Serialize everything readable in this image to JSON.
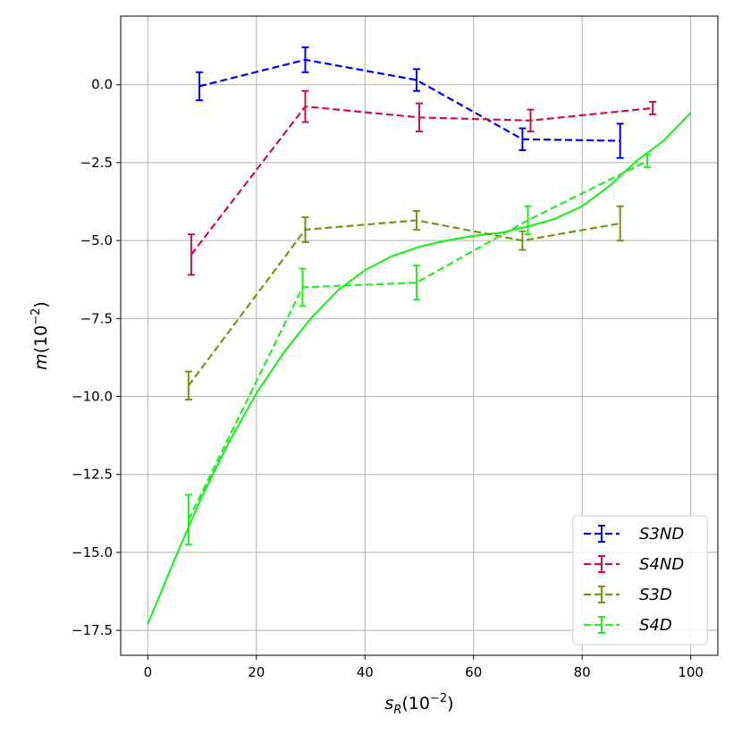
{
  "chart_data": {
    "type": "line",
    "title": "",
    "xlabel": "s_R(10^{-2})",
    "ylabel": "m(10^{-2})",
    "xlim": [
      -5,
      105
    ],
    "ylim": [
      -18.3,
      2.2
    ],
    "xticks": [
      0,
      20,
      40,
      60,
      80,
      100
    ],
    "yticks": [
      0.0,
      -2.5,
      -5.0,
      -7.5,
      -10.0,
      -12.5,
      -15.0,
      -17.5
    ],
    "xtick_labels": [
      "0",
      "20",
      "40",
      "60",
      "80",
      "100"
    ],
    "ytick_labels": [
      "0.0",
      "−2.5",
      "−5.0",
      "−7.5",
      "−10.0",
      "−12.5",
      "−15.0",
      "−17.5"
    ],
    "grid": true,
    "legend_position": "lower-right",
    "series": [
      {
        "name": "S3ND",
        "color": "#0000ee",
        "style": "dashed-errorbar",
        "x": [
          9.5,
          29,
          49.5,
          69,
          87
        ],
        "y": [
          -0.05,
          0.8,
          0.15,
          -1.75,
          -1.8
        ],
        "yerr": [
          0.45,
          0.4,
          0.35,
          0.35,
          0.55
        ]
      },
      {
        "name": "S4ND",
        "color": "#cc1144",
        "style": "dashed-errorbar",
        "x": [
          8,
          29,
          50,
          70.5,
          93
        ],
        "y": [
          -5.45,
          -0.7,
          -1.05,
          -1.15,
          -0.75
        ],
        "yerr": [
          0.65,
          0.5,
          0.45,
          0.35,
          0.2
        ]
      },
      {
        "name": "S3D",
        "color": "#6b9a10",
        "style": "dashed-errorbar",
        "x": [
          7.5,
          29,
          49.5,
          69,
          87
        ],
        "y": [
          -9.65,
          -4.65,
          -4.35,
          -5.0,
          -4.45
        ],
        "yerr": [
          0.45,
          0.4,
          0.3,
          0.3,
          0.55
        ]
      },
      {
        "name": "S4D",
        "color": "#22ee22",
        "style": "dashed-errorbar",
        "x": [
          7.5,
          28.5,
          49.5,
          70,
          92
        ],
        "y": [
          -13.95,
          -6.5,
          -6.35,
          -4.35,
          -2.45
        ],
        "yerr": [
          0.8,
          0.6,
          0.55,
          0.45,
          0.2
        ]
      }
    ],
    "fit_curve": {
      "color": "#22ee22",
      "style": "solid",
      "x": [
        0,
        5,
        10,
        15,
        20,
        25,
        30,
        35,
        40,
        45,
        50,
        55,
        60,
        65,
        70,
        75,
        80,
        85,
        90,
        95,
        100
      ],
      "y": [
        -17.3,
        -15.2,
        -13.2,
        -11.45,
        -9.9,
        -8.6,
        -7.5,
        -6.6,
        -5.95,
        -5.5,
        -5.2,
        -5.0,
        -4.85,
        -4.75,
        -4.55,
        -4.3,
        -3.9,
        -3.25,
        -2.45,
        -1.8,
        -0.9
      ]
    }
  }
}
